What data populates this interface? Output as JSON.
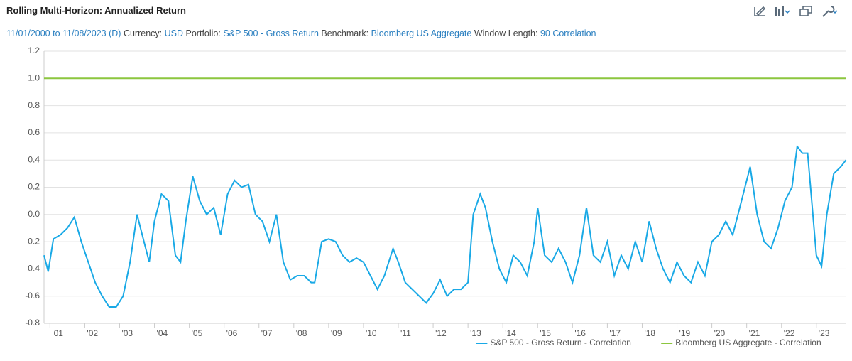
{
  "chart_data": {
    "type": "line",
    "title": "Rolling Multi-Horizon: Annualized Return",
    "subtitle": {
      "date_range": "11/01/2000 to 11/08/2023 (D)",
      "currency_label": "Currency:",
      "currency": "USD",
      "portfolio_label": "Portfolio:",
      "portfolio": "S&P 500 - Gross Return",
      "benchmark_label": "Benchmark:",
      "benchmark": "Bloomberg US Aggregate",
      "window_label": "Window Length:",
      "window": "90 Correlation"
    },
    "xlim": [
      2000.83,
      2023.86
    ],
    "xticks": [
      {
        "value": 2001,
        "label": "'01"
      },
      {
        "value": 2002,
        "label": "'02"
      },
      {
        "value": 2003,
        "label": "'03"
      },
      {
        "value": 2004,
        "label": "'04"
      },
      {
        "value": 2005,
        "label": "'05"
      },
      {
        "value": 2006,
        "label": "'06"
      },
      {
        "value": 2007,
        "label": "'07"
      },
      {
        "value": 2008,
        "label": "'08"
      },
      {
        "value": 2009,
        "label": "'09"
      },
      {
        "value": 2010,
        "label": "'10"
      },
      {
        "value": 2011,
        "label": "'11"
      },
      {
        "value": 2012,
        "label": "'12"
      },
      {
        "value": 2013,
        "label": "'13"
      },
      {
        "value": 2014,
        "label": "'14"
      },
      {
        "value": 2015,
        "label": "'15"
      },
      {
        "value": 2016,
        "label": "'16"
      },
      {
        "value": 2017,
        "label": "'17"
      },
      {
        "value": 2018,
        "label": "'18"
      },
      {
        "value": 2019,
        "label": "'19"
      },
      {
        "value": 2020,
        "label": "'20"
      },
      {
        "value": 2021,
        "label": "'21"
      },
      {
        "value": 2022,
        "label": "'22"
      },
      {
        "value": 2023,
        "label": "'23"
      }
    ],
    "ylim": [
      -0.8,
      1.2
    ],
    "yticks": [
      {
        "value": -0.8,
        "label": "-0.8"
      },
      {
        "value": -0.6,
        "label": "-0.6"
      },
      {
        "value": -0.4,
        "label": "-0.4"
      },
      {
        "value": -0.2,
        "label": "-0.2"
      },
      {
        "value": 0,
        "label": "0.0"
      },
      {
        "value": 0.2,
        "label": "0.2"
      },
      {
        "value": 0.4,
        "label": "0.4"
      },
      {
        "value": 0.6,
        "label": "0.6"
      },
      {
        "value": 0.8,
        "label": "0.8"
      },
      {
        "value": 1,
        "label": "1.0"
      },
      {
        "value": 1.2,
        "label": "1.2"
      }
    ],
    "grid": true,
    "legend": "bottom-right",
    "series": [
      {
        "name": "S&P 500 - Gross Return - Correlation",
        "color": "#19a9e6",
        "x": [
          2000.83,
          2000.95,
          2001.1,
          2001.3,
          2001.5,
          2001.7,
          2001.9,
          2002.1,
          2002.3,
          2002.5,
          2002.7,
          2002.9,
          2003.1,
          2003.3,
          2003.5,
          2003.7,
          2003.85,
          2004.0,
          2004.2,
          2004.4,
          2004.6,
          2004.75,
          2004.9,
          2005.1,
          2005.3,
          2005.5,
          2005.7,
          2005.9,
          2006.1,
          2006.3,
          2006.5,
          2006.7,
          2006.9,
          2007.1,
          2007.3,
          2007.5,
          2007.7,
          2007.9,
          2008.1,
          2008.3,
          2008.5,
          2008.6,
          2008.8,
          2009.0,
          2009.2,
          2009.4,
          2009.6,
          2009.8,
          2010.0,
          2010.2,
          2010.4,
          2010.6,
          2010.85,
          2011.0,
          2011.2,
          2011.4,
          2011.6,
          2011.8,
          2012.0,
          2012.2,
          2012.4,
          2012.6,
          2012.8,
          2013.0,
          2013.15,
          2013.35,
          2013.5,
          2013.7,
          2013.9,
          2014.1,
          2014.3,
          2014.5,
          2014.7,
          2014.9,
          2015.0,
          2015.2,
          2015.4,
          2015.6,
          2015.8,
          2016.0,
          2016.2,
          2016.4,
          2016.6,
          2016.8,
          2017.0,
          2017.2,
          2017.4,
          2017.6,
          2017.8,
          2018.0,
          2018.2,
          2018.4,
          2018.6,
          2018.8,
          2019.0,
          2019.2,
          2019.4,
          2019.6,
          2019.8,
          2020.0,
          2020.2,
          2020.4,
          2020.6,
          2020.8,
          2021.0,
          2021.1,
          2021.3,
          2021.5,
          2021.7,
          2021.9,
          2022.1,
          2022.3,
          2022.45,
          2022.6,
          2022.75,
          2022.9,
          2023.0,
          2023.15,
          2023.3,
          2023.5,
          2023.7,
          2023.85
        ],
        "values": [
          -0.3,
          -0.42,
          -0.18,
          -0.15,
          -0.1,
          -0.02,
          -0.2,
          -0.35,
          -0.5,
          -0.6,
          -0.68,
          -0.68,
          -0.6,
          -0.35,
          0.0,
          -0.2,
          -0.35,
          -0.05,
          0.15,
          0.1,
          -0.3,
          -0.35,
          -0.05,
          0.28,
          0.1,
          0.0,
          0.05,
          -0.15,
          0.15,
          0.25,
          0.2,
          0.22,
          0.0,
          -0.05,
          -0.2,
          0.0,
          -0.35,
          -0.48,
          -0.45,
          -0.45,
          -0.5,
          -0.5,
          -0.2,
          -0.18,
          -0.2,
          -0.3,
          -0.35,
          -0.32,
          -0.35,
          -0.45,
          -0.55,
          -0.45,
          -0.25,
          -0.35,
          -0.5,
          -0.55,
          -0.6,
          -0.65,
          -0.58,
          -0.48,
          -0.6,
          -0.55,
          -0.55,
          -0.5,
          0.0,
          0.15,
          0.05,
          -0.2,
          -0.4,
          -0.5,
          -0.3,
          -0.35,
          -0.45,
          -0.2,
          0.05,
          -0.3,
          -0.35,
          -0.25,
          -0.35,
          -0.5,
          -0.3,
          0.05,
          -0.3,
          -0.35,
          -0.2,
          -0.45,
          -0.3,
          -0.4,
          -0.2,
          -0.35,
          -0.05,
          -0.25,
          -0.4,
          -0.5,
          -0.35,
          -0.45,
          -0.5,
          -0.35,
          -0.45,
          -0.2,
          -0.15,
          -0.05,
          -0.15,
          0.05,
          0.25,
          0.35,
          0.0,
          -0.2,
          -0.25,
          -0.1,
          0.1,
          0.2,
          0.5,
          0.45,
          0.45,
          0.0,
          -0.3,
          -0.38,
          0.0,
          0.3,
          0.35,
          0.4
        ]
      },
      {
        "name": "Bloomberg US Aggregate - Correlation",
        "color": "#8cc63f",
        "x": [
          2000.83,
          2023.86
        ],
        "values": [
          1,
          1
        ]
      }
    ]
  }
}
